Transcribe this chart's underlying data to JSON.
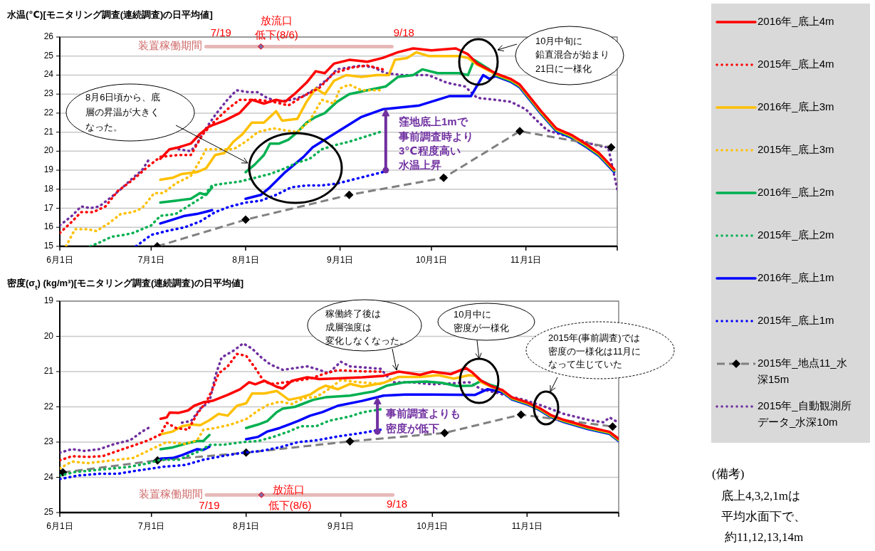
{
  "chart_data": [
    {
      "type": "line",
      "title": "水温(℃)[モニタリング調査(連続調査)の日平均値]",
      "xlim": [
        "--06-01",
        "--12-01"
      ],
      "ylim": [
        15,
        26
      ],
      "yticks": [
        15,
        16,
        17,
        18,
        19,
        20,
        21,
        22,
        23,
        24,
        25,
        26
      ],
      "xticks": [
        {
          "value": "--06-01",
          "label": "6月1日"
        },
        {
          "value": "--07-01",
          "label": "7月1日"
        },
        {
          "value": "--08-01",
          "label": "8月1日"
        },
        {
          "value": "--09-01",
          "label": "9月1日"
        },
        {
          "value": "--10-01",
          "label": "10月1日"
        },
        {
          "value": "--11-01",
          "label": "11月1日"
        },
        {
          "value": "--12-01",
          "label": null
        }
      ],
      "grid": "y",
      "legend": "right",
      "annotations": [
        {
          "text": "7/19",
          "x": "--07-19",
          "y": 25.5
        },
        {
          "text": "9/18",
          "x": "--09-18",
          "y": 25.5
        },
        {
          "text": "放流口低下(8/6)",
          "x": "--08-06",
          "y": 25.5
        },
        "8月6日頃から、底層の昇温が大きくなった。",
        "10月中旬に鉛直混合が始まり21日に一様化",
        {
          "text": "窪地底上1mで事前調査時より3℃程度高い水温上昇",
          "x": "--09-16",
          "y": 19.0
        }
      ],
      "series": [
        {
          "name": "2016年_底上4m",
          "color": "#ff0000",
          "line_style": "solid",
          "x": [
            "--07-04",
            "--07-07",
            "--07-10",
            "--07-14",
            "--07-17",
            "--07-20",
            "--07-25",
            "--07-30",
            "--08-03",
            "--08-07",
            "--08-11",
            "--08-14",
            "--08-17",
            "--08-21",
            "--08-24",
            "--08-27",
            "--08-30",
            "--09-04",
            "--09-10",
            "--09-15",
            "--09-20",
            "--09-25",
            "--10-01",
            "--10-09",
            "--10-13",
            "--10-16",
            "--10-22",
            "--10-27",
            "--10-30",
            "--11-03",
            "--11-06",
            "--11-11",
            "--11-16",
            "--11-21",
            "--11-25",
            "--11-30"
          ],
          "values": [
            19.6,
            20.1,
            20.2,
            20.4,
            20.9,
            21.3,
            21.6,
            22.0,
            22.7,
            22.5,
            22.7,
            22.6,
            23.0,
            23.6,
            24.2,
            24.1,
            24.6,
            24.8,
            24.7,
            24.9,
            25.2,
            25.4,
            25.3,
            25.4,
            25.1,
            24.6,
            24.1,
            23.8,
            23.5,
            22.7,
            22.1,
            21.2,
            20.85,
            20.35,
            19.9,
            19.05
          ]
        },
        {
          "name": "2015年_底上4m",
          "color": "#ff0000",
          "line_style": "dotted",
          "x": [
            "--06-01",
            "--06-05",
            "--06-08",
            "--06-12",
            "--06-16",
            "--06-20",
            "--06-25",
            "--06-30",
            "--07-04",
            "--07-10",
            "--07-14",
            "--07-18",
            "--07-22",
            "--07-26",
            "--07-30",
            "--08-05",
            "--08-10",
            "--08-15",
            "--08-20",
            "--08-25",
            "--08-30",
            "--09-05",
            "--09-10",
            "--09-15"
          ],
          "values": [
            15.7,
            16.3,
            16.8,
            16.8,
            17.1,
            17.9,
            18.5,
            19.2,
            19.7,
            19.8,
            19.8,
            20.9,
            21.6,
            22.2,
            22.7,
            22.7,
            22.6,
            22.4,
            22.9,
            23.3,
            24.1,
            24.4,
            24.5,
            24.3
          ]
        },
        {
          "name": "2016年_底上3m",
          "color": "#ffc000",
          "line_style": "solid",
          "x": [
            "--07-04",
            "--07-08",
            "--07-11",
            "--07-16",
            "--07-19",
            "--07-22",
            "--07-25",
            "--07-28",
            "--07-31",
            "--08-03",
            "--08-07",
            "--08-11",
            "--08-13",
            "--08-18",
            "--08-21",
            "--08-24",
            "--08-27",
            "--08-30",
            "--09-03",
            "--09-08",
            "--09-13",
            "--09-17",
            "--09-19",
            "--09-23",
            "--09-26",
            "--09-30",
            "--10-05",
            "--10-10",
            "--10-13",
            "--10-16",
            "--10-22",
            "--10-27",
            "--10-30",
            "--11-03",
            "--11-06",
            "--11-11",
            "--11-16",
            "--11-21",
            "--11-25",
            "--11-30"
          ],
          "values": [
            18.5,
            18.6,
            18.8,
            18.9,
            19.1,
            19.8,
            19.9,
            20.5,
            20.9,
            21.5,
            21.5,
            22.1,
            21.6,
            21.7,
            22.6,
            23.3,
            23.0,
            23.7,
            24.0,
            23.9,
            24.0,
            24.0,
            24.8,
            24.9,
            25.2,
            25.0,
            25.0,
            25.0,
            24.9,
            24.55,
            24.05,
            23.75,
            23.45,
            22.65,
            22.05,
            21.15,
            20.8,
            20.3,
            19.85,
            19.0
          ]
        },
        {
          "name": "2015年_底上3m",
          "color": "#ffc000",
          "line_style": "dotted",
          "x": [
            "--06-03",
            "--06-06",
            "--06-10",
            "--06-13",
            "--06-17",
            "--06-21",
            "--06-25",
            "--06-28",
            "--07-02",
            "--07-05",
            "--07-09",
            "--07-14",
            "--07-17",
            "--07-19",
            "--07-24",
            "--07-28",
            "--08-01",
            "--08-05",
            "--08-10",
            "--08-14",
            "--08-18",
            "--08-22",
            "--08-26",
            "--08-30",
            "--09-01",
            "--09-04",
            "--09-08",
            "--09-14"
          ],
          "values": [
            15.0,
            15.9,
            15.9,
            15.8,
            16.2,
            16.7,
            16.8,
            17.0,
            17.8,
            17.8,
            18.3,
            18.7,
            19.5,
            20.1,
            20.1,
            20.1,
            20.5,
            21.0,
            21.2,
            21.1,
            21.0,
            21.6,
            22.7,
            22.5,
            23.3,
            23.5,
            23.2,
            23.2
          ]
        },
        {
          "name": "2016年_底上2m",
          "color": "#00b050",
          "line_style": "solid",
          "x": [
            "--07-04",
            "--07-09",
            "--07-14",
            "--07-17",
            "--07-19",
            "--07-21"
          ],
          "values": [
            17.3,
            17.4,
            17.5,
            17.8,
            17.7,
            18.1
          ]
        },
        {
          "name": "2015年_底上2m",
          "color": "#00b050",
          "line_style": "dotted",
          "x": [
            "--06-11",
            "--06-14",
            "--06-18",
            "--06-22",
            "--06-25",
            "--06-28",
            "--07-01",
            "--07-04",
            "--07-09",
            "--07-14",
            "--07-18",
            "--07-21",
            "--07-25",
            "--07-30",
            "--08-04",
            "--08-09",
            "--08-14",
            "--08-18",
            "--08-22",
            "--08-26",
            "--08-30",
            "--09-04",
            "--09-10",
            "--09-14"
          ],
          "values": [
            15.0,
            15.2,
            15.5,
            15.6,
            15.7,
            15.9,
            16.1,
            16.6,
            16.7,
            17.2,
            17.6,
            18.2,
            18.3,
            18.4,
            18.6,
            18.8,
            19.1,
            19.4,
            19.6,
            20.1,
            20.3,
            20.5,
            20.8,
            21.0
          ]
        },
        {
          "name": "2016年_底上1m",
          "color": "#0000ff",
          "line_style": "solid",
          "x": [
            "--07-04",
            "--07-08",
            "--07-12",
            "--07-16",
            "--07-21"
          ],
          "values": [
            16.2,
            16.4,
            16.6,
            16.7,
            16.9
          ]
        },
        {
          "name": "2015年_底上1m",
          "color": "#0000ff",
          "line_style": "dotted",
          "x": [
            "--06-26",
            "--07-01",
            "--07-06",
            "--07-12",
            "--07-17",
            "--07-22",
            "--07-27",
            "--08-01",
            "--08-06",
            "--08-11",
            "--08-16",
            "--08-21",
            "--08-26",
            "--08-31",
            "--09-05",
            "--09-10",
            "--09-15"
          ],
          "values": [
            15.0,
            15.6,
            15.8,
            16.0,
            16.3,
            16.8,
            17.1,
            17.3,
            17.4,
            17.7,
            18.1,
            18.2,
            18.2,
            18.3,
            18.5,
            18.7,
            18.9
          ]
        },
        {
          "name": "2015年_地点11_水深15m",
          "color": "#808080",
          "line_style": "dashed",
          "marker": "diamond",
          "x": [
            "--07-03",
            "--08-01",
            "--09-04",
            "--10-05",
            "--10-30",
            "--11-29"
          ],
          "values": [
            15.0,
            16.4,
            17.7,
            18.6,
            21.05,
            20.2
          ]
        },
        {
          "name": "2015年_自動観測所データ_水深10m",
          "color": "#7030a0",
          "line_style": "dotted",
          "x": [
            "--06-01",
            "--06-05",
            "--06-08",
            "--06-11",
            "--06-14",
            "--06-18",
            "--06-21",
            "--06-25",
            "--06-28",
            "--06-30"
          ],
          "values": [
            16.1,
            16.6,
            17.1,
            17.0,
            17.1,
            17.6,
            18.0,
            18.6,
            19.0,
            19.5
          ]
        },
        {
          "color": "#00b050",
          "line_style": "solid",
          "x": [
            "--08-01",
            "--08-04",
            "--08-07",
            "--08-09",
            "--08-12",
            "--08-15",
            "--08-18",
            "--08-21",
            "--08-24",
            "--08-27",
            "--08-31",
            "--09-04",
            "--09-10",
            "--09-16",
            "--09-20",
            "--09-25",
            "--09-28",
            "--10-03",
            "--10-10",
            "--10-13",
            "--10-15",
            "--10-20",
            "--10-22",
            "--10-27",
            "--10-30",
            "--11-03",
            "--11-06",
            "--11-11",
            "--11-16",
            "--11-21",
            "--11-25",
            "--11-30"
          ],
          "values": [
            18.9,
            19.3,
            19.8,
            20.4,
            20.4,
            20.6,
            21.0,
            21.5,
            21.8,
            22.0,
            22.6,
            23.0,
            23.2,
            23.4,
            23.9,
            24.0,
            24.3,
            24.1,
            24.1,
            24.0,
            24.8,
            24.3,
            24.0,
            23.7,
            23.4,
            22.6,
            22.0,
            21.1,
            20.75,
            20.25,
            19.8,
            18.95
          ]
        },
        {
          "color": "#0000ff",
          "line_style": "solid",
          "x": [
            "--08-01",
            "--08-06",
            "--08-09",
            "--08-14",
            "--08-20",
            "--08-23",
            "--08-27",
            "--09-02",
            "--09-08",
            "--09-15",
            "--09-27",
            "--10-07",
            "--10-14",
            "--10-18",
            "--10-20",
            "--10-22",
            "--10-27",
            "--10-30",
            "--11-03",
            "--11-06",
            "--11-11",
            "--11-16",
            "--11-21",
            "--11-25",
            "--11-30"
          ],
          "values": [
            17.5,
            17.7,
            18.1,
            18.9,
            19.7,
            20.2,
            20.6,
            21.2,
            21.8,
            22.2,
            22.4,
            22.9,
            22.9,
            24.0,
            23.8,
            23.95,
            23.65,
            23.35,
            22.55,
            21.95,
            21.05,
            20.7,
            20.2,
            19.75,
            18.9
          ]
        },
        {
          "color": "#7030a0",
          "line_style": "dotted",
          "x": [
            "--07-10",
            "--07-14",
            "--07-16",
            "--07-19",
            "--07-22",
            "--07-26",
            "--07-29",
            "--08-02",
            "--08-05",
            "--08-08",
            "--08-12",
            "--08-16",
            "--08-20",
            "--08-24",
            "--08-28",
            "--08-31",
            "--09-04",
            "--09-08",
            "--09-12",
            "--09-16",
            "--09-22",
            "--09-30",
            "--10-06",
            "--10-12",
            "--10-16",
            "--10-22",
            "--10-27",
            "--11-01",
            "--11-04",
            "--11-08",
            "--11-12",
            "--11-17",
            "--11-22",
            "--11-26",
            "--11-28",
            "--12-01"
          ],
          "values": [
            20.1,
            20.0,
            20.4,
            21.2,
            21.9,
            22.7,
            23.2,
            23.1,
            23.1,
            22.8,
            22.6,
            22.7,
            22.9,
            23.3,
            23.8,
            24.3,
            24.4,
            24.5,
            24.4,
            24.1,
            24.0,
            24.0,
            23.6,
            23.4,
            22.8,
            22.7,
            22.6,
            22.2,
            21.7,
            21.1,
            20.9,
            20.7,
            20.4,
            20.25,
            20.2,
            18.0
          ]
        },
        {
          "type": "line",
          "name": "装置稼働期間",
          "color": "#e6b9b8",
          "line_style": "solid",
          "x": [
            "--07-19",
            "--09-18"
          ],
          "values": [
            25.5,
            25.5
          ]
        },
        {
          "type": "scatter",
          "marker": "diamond",
          "color": "#8064a2",
          "x": [
            "--08-06"
          ],
          "values": [
            25.5
          ]
        }
      ]
    },
    {
      "type": "line",
      "title": "密度(σ$_{t}$)  (kg/m³)[モニタリング調査(連続調査)の日平均値]",
      "xlim": [
        "--06-01",
        "--12-01"
      ],
      "ylim": [
        25,
        19
      ],
      "yticks": [
        19,
        20,
        21,
        22,
        23,
        24,
        25
      ],
      "xticks": [
        {
          "value": "--06-01",
          "label": "6月1日"
        },
        {
          "value": "--07-01",
          "label": "7月1日"
        },
        {
          "value": "--08-01",
          "label": "8月1日"
        },
        {
          "value": "--09-01",
          "label": "9月1日"
        },
        {
          "value": "--10-01",
          "label": "10月1日"
        },
        {
          "value": "--11-01",
          "label": "11月1日"
        },
        {
          "value": "--12-01",
          "label": null
        }
      ],
      "grid": "y",
      "annotations": [
        {
          "text": "7/19",
          "x": "--07-19",
          "y": 24.5
        },
        {
          "text": "9/18",
          "x": "--09-18",
          "y": 24.5
        },
        {
          "text": "放流口低下(8/6)",
          "x": "--08-06",
          "y": 24.5
        },
        "稼働終了後は成層強度は変化しなくなった。",
        "10月中に密度が一様化",
        "2015年(事前調査)では密度の一様化は11月になって生じていた",
        {
          "text": "事前調査よりも密度が低下",
          "x": "--09-13",
          "y": 22.7
        },
        "(備考)",
        "底上4,3,2,1mは平均水面下で、約11,12,13,14m"
      ],
      "series": [
        {
          "color": "#ff0000",
          "line_style": "solid",
          "x": [
            "--07-04",
            "--07-06",
            "--07-07",
            "--07-10",
            "--07-13",
            "--07-15",
            "--07-18",
            "--07-21",
            "--07-26",
            "--07-30",
            "--08-02",
            "--08-04",
            "--08-07",
            "--08-11",
            "--08-13",
            "--08-16",
            "--08-21",
            "--08-25",
            "--08-31",
            "--09-08",
            "--09-15",
            "--09-20",
            "--09-27",
            "--10-01",
            "--10-07",
            "--10-12",
            "--10-14",
            "--10-17",
            "--10-20",
            "--10-24",
            "--10-27",
            "--11-01",
            "--11-05",
            "--11-09",
            "--11-13",
            "--11-21",
            "--11-28",
            "--12-01"
          ],
          "values": [
            22.34,
            22.3,
            22.16,
            22.17,
            22.1,
            21.97,
            21.87,
            21.83,
            21.66,
            21.5,
            21.3,
            21.36,
            21.26,
            21.43,
            21.48,
            21.26,
            21.16,
            21.21,
            21.19,
            21.16,
            21.12,
            21.0,
            21.09,
            21.0,
            21.07,
            20.9,
            21.02,
            21.26,
            21.4,
            21.53,
            21.73,
            21.87,
            22.03,
            22.24,
            22.37,
            22.57,
            22.71,
            22.91
          ]
        },
        {
          "color": "#ff0000",
          "line_style": "dotted",
          "x": [
            "--06-01",
            "--06-05",
            "--06-10",
            "--06-15",
            "--06-20",
            "--06-25",
            "--06-30",
            "--07-04",
            "--07-06",
            "--07-09",
            "--07-13",
            "--07-16",
            "--07-19",
            "--07-21",
            "--07-23",
            "--07-26",
            "--07-29",
            "--08-01",
            "--08-04",
            "--08-07",
            "--08-10",
            "--08-14",
            "--08-18",
            "--08-22",
            "--08-27",
            "--08-31",
            "--09-07",
            "--09-14"
          ],
          "values": [
            23.52,
            23.4,
            23.42,
            23.4,
            23.25,
            23.1,
            22.95,
            22.78,
            22.45,
            22.6,
            22.65,
            22.2,
            21.85,
            21.5,
            21.05,
            20.85,
            20.5,
            20.55,
            20.9,
            21.3,
            21.35,
            21.3,
            21.25,
            21.2,
            21.05,
            20.96,
            20.99,
            21.0
          ]
        },
        {
          "color": "#ffc000",
          "line_style": "solid",
          "x": [
            "--07-04",
            "--07-08",
            "--07-11",
            "--07-14",
            "--07-17",
            "--07-20",
            "--07-23",
            "--07-26",
            "--07-29",
            "--08-01",
            "--08-03",
            "--08-07",
            "--08-11",
            "--08-15",
            "--08-19",
            "--08-22",
            "--08-25",
            "--08-27",
            "--08-31",
            "--09-04",
            "--09-08",
            "--09-15",
            "--09-20",
            "--09-27",
            "--10-03",
            "--10-08",
            "--10-13",
            "--10-15",
            "--10-17",
            "--10-20",
            "--10-24",
            "--10-27",
            "--11-01",
            "--11-05",
            "--11-09",
            "--11-13",
            "--11-21",
            "--11-28",
            "--12-01"
          ],
          "values": [
            22.78,
            22.7,
            22.55,
            22.5,
            22.52,
            22.38,
            22.2,
            22.25,
            21.97,
            21.9,
            21.62,
            21.62,
            21.55,
            21.8,
            21.73,
            21.65,
            21.48,
            21.4,
            21.5,
            21.35,
            21.43,
            21.32,
            21.15,
            21.15,
            21.1,
            21.2,
            21.1,
            21.12,
            21.3,
            21.42,
            21.55,
            21.75,
            21.89,
            22.05,
            22.26,
            22.39,
            22.59,
            22.73,
            22.93
          ]
        },
        {
          "color": "#ffc000",
          "line_style": "dotted",
          "x": [
            "--06-01",
            "--06-05",
            "--06-10",
            "--06-15",
            "--06-20",
            "--06-25",
            "--07-01",
            "--07-06",
            "--07-12",
            "--07-16",
            "--07-18",
            "--07-22",
            "--07-27",
            "--08-01",
            "--08-05",
            "--08-08",
            "--08-12",
            "--08-16",
            "--08-20",
            "--08-24",
            "--08-28",
            "--09-01",
            "--09-07",
            "--09-14"
          ],
          "values": [
            23.75,
            23.55,
            23.6,
            23.55,
            23.5,
            23.45,
            23.2,
            23.0,
            23.05,
            22.95,
            22.65,
            22.6,
            22.5,
            22.35,
            22.1,
            21.95,
            21.85,
            21.92,
            21.75,
            21.72,
            21.5,
            21.24,
            21.3,
            21.35
          ]
        },
        {
          "color": "#00b050",
          "line_style": "solid",
          "x": [
            "--07-04",
            "--07-08",
            "--07-12",
            "--07-16",
            "--07-18",
            "--07-20"
          ],
          "values": [
            23.2,
            23.15,
            23.05,
            22.97,
            22.97,
            22.8
          ]
        },
        {
          "color": "#00b050",
          "line_style": "dotted",
          "x": [
            "--06-01",
            "--06-06",
            "--06-12",
            "--06-18",
            "--06-24",
            "--06-30",
            "--07-04",
            "--07-10",
            "--07-14",
            "--07-17",
            "--07-20",
            "--07-25",
            "--07-31",
            "--08-05",
            "--08-10",
            "--08-15",
            "--08-19",
            "--08-24",
            "--08-28",
            "--09-04",
            "--09-08",
            "--09-14"
          ],
          "values": [
            23.95,
            23.85,
            23.8,
            23.75,
            23.7,
            23.6,
            23.5,
            23.5,
            23.35,
            23.25,
            23.08,
            23.07,
            23.0,
            22.97,
            22.85,
            22.7,
            22.55,
            22.55,
            22.4,
            22.27,
            22.16,
            22.07
          ]
        },
        {
          "color": "#0000ff",
          "line_style": "solid",
          "x": [
            "--07-04",
            "--07-08",
            "--07-11",
            "--07-13",
            "--07-16",
            "--07-18",
            "--07-20"
          ],
          "values": [
            23.47,
            23.45,
            23.37,
            23.3,
            23.2,
            23.22,
            23.13
          ]
        },
        {
          "color": "#0000ff",
          "line_style": "dotted",
          "x": [
            "--06-01",
            "--06-07",
            "--06-14",
            "--06-20",
            "--06-27",
            "--07-01",
            "--07-05",
            "--07-12",
            "--07-18",
            "--07-24",
            "--07-31",
            "--08-06",
            "--08-12",
            "--08-18",
            "--08-24",
            "--08-31",
            "--09-08",
            "--09-14"
          ],
          "values": [
            24.05,
            23.95,
            23.9,
            23.9,
            23.8,
            23.75,
            23.7,
            23.65,
            23.5,
            23.4,
            23.3,
            23.25,
            23.15,
            23.0,
            22.95,
            22.84,
            22.74,
            22.65
          ]
        },
        {
          "color": "#808080",
          "line_style": "dashed",
          "marker": "diamond",
          "x": [
            "--06-02",
            "--07-03",
            "--08-01",
            "--09-04",
            "--10-05",
            "--10-30",
            "--11-29"
          ],
          "values": [
            23.86,
            23.52,
            23.3,
            22.98,
            22.74,
            22.22,
            22.56
          ]
        },
        {
          "color": "#7030a0",
          "line_style": "dotted",
          "x": [
            "--06-01",
            "--06-05",
            "--06-09",
            "--06-14",
            "--06-19",
            "--06-24",
            "--06-28",
            "--06-30"
          ],
          "values": [
            23.3,
            23.2,
            23.25,
            23.2,
            23.05,
            22.95,
            22.7,
            22.6
          ]
        },
        {
          "color": "#00b050",
          "line_style": "solid",
          "x": [
            "--08-01",
            "--08-05",
            "--08-08",
            "--08-11",
            "--08-13",
            "--08-17",
            "--08-20",
            "--08-23",
            "--08-27",
            "--09-04",
            "--09-12",
            "--09-16",
            "--09-22",
            "--09-29",
            "--10-04",
            "--10-09",
            "--10-14",
            "--10-17",
            "--10-20",
            "--10-22",
            "--10-24",
            "--10-27",
            "--11-01",
            "--11-05",
            "--11-09",
            "--11-13",
            "--11-21",
            "--11-28",
            "--12-01"
          ],
          "values": [
            22.6,
            22.5,
            22.4,
            22.15,
            22.05,
            22.0,
            21.9,
            21.8,
            21.73,
            21.68,
            21.56,
            21.4,
            21.3,
            21.28,
            21.32,
            21.41,
            21.4,
            21.26,
            21.38,
            21.43,
            21.57,
            21.77,
            21.91,
            22.07,
            22.28,
            22.41,
            22.61,
            22.75,
            22.95
          ]
        },
        {
          "color": "#0000ff",
          "line_style": "solid",
          "x": [
            "--08-01",
            "--08-05",
            "--08-08",
            "--08-12",
            "--08-15",
            "--08-18",
            "--08-22",
            "--08-26",
            "--08-31",
            "--09-08",
            "--09-15",
            "--09-22",
            "--10-01",
            "--10-15",
            "--10-19",
            "--10-21",
            "--10-24",
            "--10-27",
            "--11-01",
            "--11-05",
            "--11-09",
            "--11-13",
            "--11-21",
            "--11-28",
            "--12-01"
          ],
          "values": [
            22.92,
            22.85,
            22.7,
            22.6,
            22.5,
            22.4,
            22.25,
            22.15,
            21.97,
            21.83,
            21.68,
            21.65,
            21.65,
            21.66,
            21.5,
            21.53,
            21.59,
            21.79,
            21.93,
            22.09,
            22.3,
            22.43,
            22.63,
            22.77,
            22.97
          ]
        },
        {
          "color": "#7030a0",
          "line_style": "dotted",
          "x": [
            "--07-11",
            "--07-14",
            "--07-17",
            "--07-20",
            "--07-22",
            "--07-24",
            "--07-28",
            "--07-31",
            "--08-03",
            "--08-06",
            "--08-09",
            "--08-13",
            "--08-17",
            "--08-21",
            "--08-25",
            "--08-28",
            "--09-01",
            "--09-04",
            "--09-14",
            "--09-18",
            "--09-24",
            "--10-01",
            "--10-08",
            "--10-13",
            "--10-17",
            "--10-22",
            "--10-26",
            "--10-31",
            "--11-06",
            "--11-13",
            "--11-21",
            "--11-26",
            "--11-28",
            "--11-30"
          ],
          "values": [
            22.45,
            22.4,
            22.05,
            21.85,
            21.1,
            20.6,
            20.4,
            20.2,
            20.35,
            20.6,
            20.8,
            20.95,
            20.9,
            20.85,
            20.95,
            21.05,
            20.72,
            20.85,
            20.92,
            21.3,
            21.3,
            21.36,
            21.33,
            21.3,
            21.5,
            21.6,
            21.7,
            21.8,
            21.97,
            22.2,
            22.37,
            22.44,
            22.3,
            22.4
          ]
        },
        {
          "type": "line",
          "name": "装置稼働期間",
          "color": "#e6b9b8",
          "line_style": "solid",
          "x": [
            "--07-19",
            "--09-18"
          ],
          "values": [
            24.5,
            24.5
          ]
        },
        {
          "type": "scatter",
          "marker": "diamond",
          "color": "#8064a2",
          "x": [
            "--08-06"
          ],
          "values": [
            24.5
          ]
        }
      ]
    }
  ]
}
